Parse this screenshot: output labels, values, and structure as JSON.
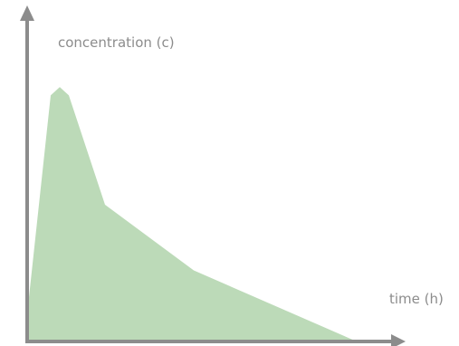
{
  "chart_data": {
    "type": "area",
    "title": "",
    "xlabel": "time (h)",
    "ylabel": "concentration (c)",
    "x_ticks_shown": false,
    "y_ticks_shown": false,
    "grid": false,
    "legend": "none",
    "fill_color": "#bcdab8",
    "axis_color": "#8c8c8c",
    "text_color": "#8c8c8c",
    "note": "No numeric tick labels are printed; x in hours, y in concentration units, both on an unlabelled 0-100 scale estimated from the plot.",
    "xlim": [
      0,
      100
    ],
    "ylim": [
      0,
      100
    ],
    "points": [
      {
        "x": 0,
        "y": 10
      },
      {
        "x": 6.5,
        "y": 90
      },
      {
        "x": 9,
        "y": 93
      },
      {
        "x": 11.5,
        "y": 90
      },
      {
        "x": 21.5,
        "y": 50
      },
      {
        "x": 46,
        "y": 26
      },
      {
        "x": 91,
        "y": 0
      }
    ]
  }
}
